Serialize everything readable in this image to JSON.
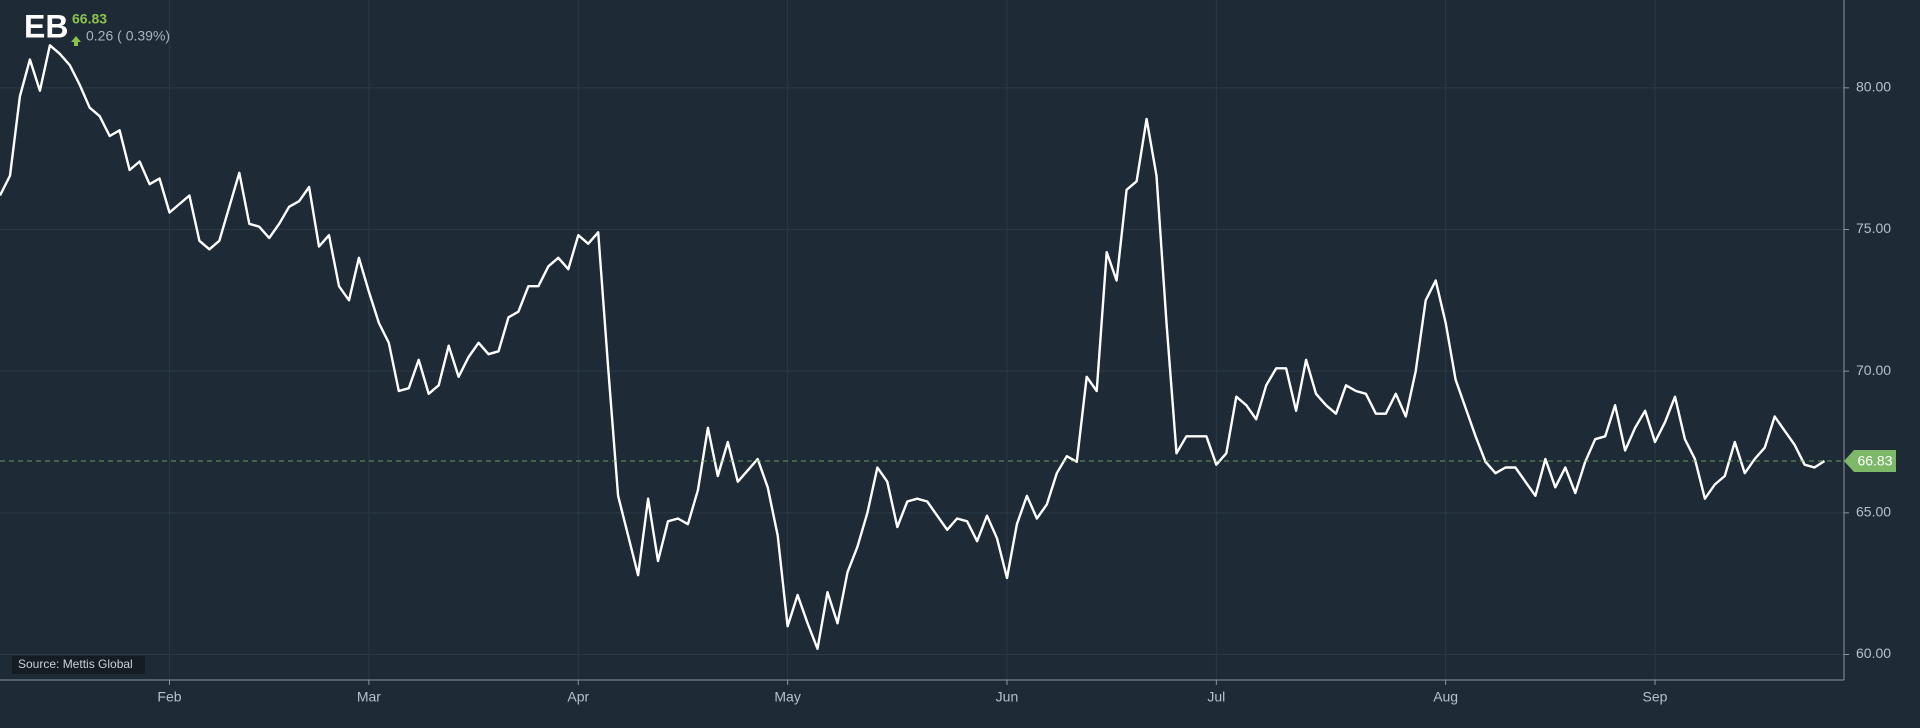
{
  "header": {
    "ticker": "EB",
    "price": 66.83,
    "change": "0.26 ( 0.39%)",
    "source": "Source: Mettis Global"
  },
  "chart_data": {
    "type": "line",
    "color": "#ffffff",
    "grid": true,
    "last_value_color": "#7cb868",
    "categories": [
      null,
      null,
      null,
      null,
      null,
      null,
      null,
      null,
      null,
      null,
      null,
      null,
      null,
      null,
      null,
      null,
      null,
      "Feb",
      null,
      null,
      null,
      null,
      null,
      null,
      null,
      null,
      null,
      null,
      null,
      null,
      null,
      null,
      null,
      null,
      null,
      null,
      null,
      "Mar",
      null,
      null,
      null,
      null,
      null,
      null,
      null,
      null,
      null,
      null,
      null,
      null,
      null,
      null,
      null,
      null,
      null,
      null,
      null,
      null,
      "Apr",
      null,
      null,
      null,
      null,
      null,
      null,
      null,
      null,
      null,
      null,
      null,
      null,
      null,
      null,
      null,
      null,
      null,
      null,
      null,
      null,
      "May",
      null,
      null,
      null,
      null,
      null,
      null,
      null,
      null,
      null,
      null,
      null,
      null,
      null,
      null,
      null,
      null,
      null,
      null,
      null,
      null,
      null,
      "Jun",
      null,
      null,
      null,
      null,
      null,
      null,
      null,
      null,
      null,
      null,
      null,
      null,
      null,
      null,
      null,
      null,
      null,
      null,
      null,
      null,
      "Jul",
      null,
      null,
      null,
      null,
      null,
      null,
      null,
      null,
      null,
      null,
      null,
      null,
      null,
      null,
      null,
      null,
      null,
      null,
      null,
      null,
      null,
      null,
      "Aug",
      null,
      null,
      null,
      null,
      null,
      null,
      null,
      null,
      null,
      null,
      null,
      null,
      null,
      null,
      null,
      null,
      null,
      null,
      null,
      null,
      "Sep",
      null,
      null,
      null,
      null,
      null,
      null,
      null,
      null,
      null,
      null,
      null,
      null,
      null,
      null,
      null,
      null,
      null
    ],
    "values": [
      76.2,
      76.9,
      79.7,
      81.0,
      79.9,
      81.5,
      81.2,
      80.8,
      80.1,
      79.3,
      79.0,
      78.3,
      78.5,
      77.1,
      77.4,
      76.6,
      76.8,
      75.6,
      75.9,
      76.2,
      74.6,
      74.3,
      74.6,
      75.8,
      77.0,
      75.2,
      75.1,
      74.7,
      75.2,
      75.8,
      76.0,
      76.5,
      74.4,
      74.8,
      73.0,
      72.5,
      74.0,
      72.8,
      71.7,
      71.0,
      69.3,
      69.4,
      70.4,
      69.2,
      69.5,
      70.9,
      69.8,
      70.5,
      71.0,
      70.6,
      70.7,
      71.9,
      72.1,
      73.0,
      73.0,
      73.7,
      74.0,
      73.6,
      74.8,
      74.5,
      74.9,
      70.1,
      65.6,
      64.2,
      62.8,
      65.5,
      63.3,
      64.7,
      64.8,
      64.6,
      65.8,
      68.0,
      66.3,
      67.5,
      66.1,
      66.5,
      66.9,
      65.9,
      64.2,
      61.0,
      62.1,
      61.1,
      60.2,
      62.2,
      61.1,
      62.9,
      63.8,
      65.0,
      66.6,
      66.1,
      64.5,
      65.4,
      65.5,
      65.4,
      64.9,
      64.4,
      64.8,
      64.7,
      64.0,
      64.9,
      64.1,
      62.7,
      64.6,
      65.6,
      64.8,
      65.3,
      66.4,
      67.0,
      66.8,
      69.8,
      69.3,
      74.2,
      73.2,
      76.4,
      76.7,
      78.9,
      76.9,
      71.7,
      67.1,
      67.7,
      67.7,
      67.7,
      66.7,
      67.1,
      69.1,
      68.8,
      68.3,
      69.5,
      70.1,
      70.1,
      68.6,
      70.4,
      69.2,
      68.8,
      68.5,
      69.5,
      69.3,
      69.2,
      68.5,
      68.5,
      69.2,
      68.4,
      70.0,
      72.5,
      73.2,
      71.7,
      69.7,
      68.7,
      67.7,
      66.8,
      66.4,
      66.6,
      66.6,
      66.1,
      65.6,
      66.9,
      65.9,
      66.6,
      65.7,
      66.8,
      67.6,
      67.7,
      68.8,
      67.2,
      68.0,
      68.6,
      67.5,
      68.2,
      69.1,
      67.6,
      66.9,
      65.5,
      66.0,
      66.3,
      67.5,
      66.4,
      66.9,
      67.3,
      68.4,
      67.9,
      67.4,
      66.7,
      66.6,
      66.83
    ],
    "ylim": [
      59.1,
      83.1
    ],
    "yticks": [
      {
        "value": 60,
        "label": "60.00"
      },
      {
        "value": 65,
        "label": "65.00"
      },
      {
        "value": 70,
        "label": "70.00"
      },
      {
        "value": 75,
        "label": "75.00"
      },
      {
        "value": 80,
        "label": "80.00"
      }
    ]
  }
}
